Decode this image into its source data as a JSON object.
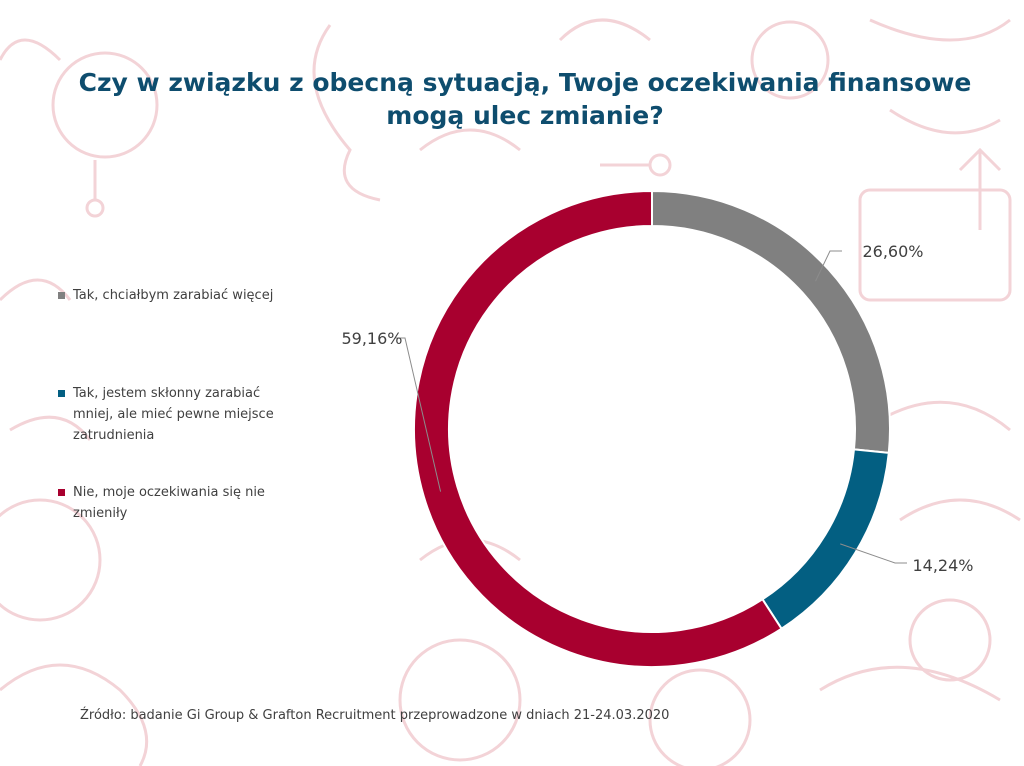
{
  "title": "Czy w związku z obecną sytuacją, Twoje oczekiwania finansowe mogą ulec zmianie?",
  "source": "Źródło: badanie Gi Group & Grafton Recruitment przeprowadzone w dniach 21-24.03.2020",
  "colors": {
    "title": "#0e4d6e",
    "background_icons": "#f3d3d7"
  },
  "chart_data": {
    "type": "pie",
    "variant": "donut",
    "legend_position": "left",
    "series": [
      {
        "name": "Tak, chciałbym zarabiać więcej",
        "value": 26.6,
        "label": "26,60%",
        "color": "#808080"
      },
      {
        "name": "Tak, jestem skłonny zarabiać mniej, ale mieć pewne miejsce zatrudnienia",
        "value": 14.24,
        "label": "14,24%",
        "color": "#035f82"
      },
      {
        "name": "Nie, moje oczekiwania się nie zmieniły",
        "value": 59.16,
        "label": "59,16%",
        "color": "#a8002f"
      }
    ]
  }
}
